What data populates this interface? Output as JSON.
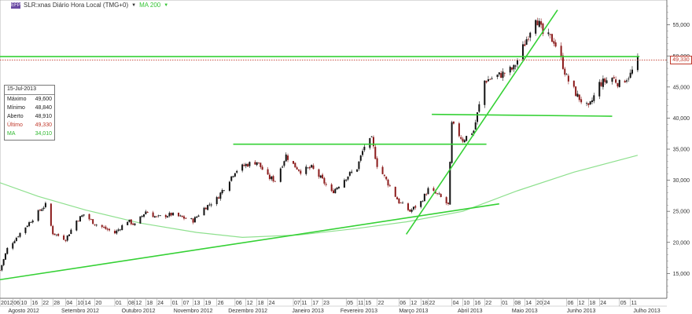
{
  "header": {
    "title": "SLR:xnas Diário Hora Local (TMG+0)",
    "ma_label": "MA 200"
  },
  "info_box": {
    "date": "15-Jul-2013",
    "rows": [
      {
        "label": "Máximo",
        "value": "49,600"
      },
      {
        "label": "Mínimo",
        "value": "48,840"
      },
      {
        "label": "Aberto",
        "value": "48,910"
      },
      {
        "label": "Último",
        "value": "49,330"
      },
      {
        "label": "MA",
        "value": "34,010"
      }
    ]
  },
  "last_price_label": "49,330",
  "colors": {
    "trendline": "#35d135",
    "ma": "#8ee08e",
    "candle_up": "#111111",
    "candle_down": "#8b1a1a",
    "last_price": "#c0392b"
  },
  "chart_data": {
    "type": "candlestick",
    "x_range": [
      "2012-07-30",
      "2013-07-31"
    ],
    "y_range": [
      11000,
      59000
    ],
    "y_ticks": [
      15000,
      20000,
      25000,
      30000,
      35000,
      40000,
      45000,
      50000,
      55000
    ],
    "y_tick_labels": [
      "15,000",
      "20,000",
      "25,000",
      "30,000",
      "35,000",
      "40,000",
      "45,000",
      "50,000",
      "55,000"
    ],
    "day_ticks": [
      {
        "d": "2012-07-30",
        "t": "2012"
      },
      {
        "d": "2012-08-06",
        "t": "06"
      },
      {
        "d": "2012-08-10",
        "t": "10"
      },
      {
        "d": "2012-08-16",
        "t": "16"
      },
      {
        "d": "2012-08-22",
        "t": "22"
      },
      {
        "d": "2012-08-28",
        "t": "28"
      },
      {
        "d": "2012-09-04",
        "t": "04"
      },
      {
        "d": "2012-09-10",
        "t": "10"
      },
      {
        "d": "2012-09-14",
        "t": "14"
      },
      {
        "d": "2012-09-20",
        "t": "20"
      },
      {
        "d": "2012-10-01",
        "t": "01"
      },
      {
        "d": "2012-10-08",
        "t": "08"
      },
      {
        "d": "2012-10-12",
        "t": "12"
      },
      {
        "d": "2012-10-18",
        "t": "18"
      },
      {
        "d": "2012-10-24",
        "t": "24"
      },
      {
        "d": "2012-11-01",
        "t": "01"
      },
      {
        "d": "2012-11-07",
        "t": "07"
      },
      {
        "d": "2012-11-13",
        "t": "13"
      },
      {
        "d": "2012-11-19",
        "t": "19"
      },
      {
        "d": "2012-11-26",
        "t": "26"
      },
      {
        "d": "2012-12-06",
        "t": "06"
      },
      {
        "d": "2012-12-12",
        "t": "12"
      },
      {
        "d": "2012-12-18",
        "t": "18"
      },
      {
        "d": "2012-12-24",
        "t": "24"
      },
      {
        "d": "2013-01-07",
        "t": "07"
      },
      {
        "d": "2013-01-11",
        "t": "11"
      },
      {
        "d": "2013-01-17",
        "t": "17"
      },
      {
        "d": "2013-01-23",
        "t": "23"
      },
      {
        "d": "2013-02-05",
        "t": "05"
      },
      {
        "d": "2013-02-11",
        "t": "11"
      },
      {
        "d": "2013-02-15",
        "t": "15"
      },
      {
        "d": "2013-02-22",
        "t": "22"
      },
      {
        "d": "2013-03-06",
        "t": "06"
      },
      {
        "d": "2013-03-12",
        "t": "12"
      },
      {
        "d": "2013-03-18",
        "t": "18"
      },
      {
        "d": "2013-03-22",
        "t": "22"
      },
      {
        "d": "2013-04-04",
        "t": "04"
      },
      {
        "d": "2013-04-10",
        "t": "10"
      },
      {
        "d": "2013-04-16",
        "t": "16"
      },
      {
        "d": "2013-04-22",
        "t": "22"
      },
      {
        "d": "2013-05-01",
        "t": "01"
      },
      {
        "d": "2013-05-08",
        "t": "08"
      },
      {
        "d": "2013-05-14",
        "t": "14"
      },
      {
        "d": "2013-05-20",
        "t": "20"
      },
      {
        "d": "2013-05-24",
        "t": "24"
      },
      {
        "d": "2013-06-06",
        "t": "06"
      },
      {
        "d": "2013-06-12",
        "t": "12"
      },
      {
        "d": "2013-06-18",
        "t": "18"
      },
      {
        "d": "2013-06-24",
        "t": "24"
      },
      {
        "d": "2013-07-05",
        "t": "05"
      },
      {
        "d": "2013-07-11",
        "t": "11"
      }
    ],
    "month_labels": [
      {
        "d": "2012-08-12",
        "t": "Agosto 2012"
      },
      {
        "d": "2012-09-12",
        "t": "Setembro 2012"
      },
      {
        "d": "2012-10-14",
        "t": "Outubro 2012"
      },
      {
        "d": "2012-11-13",
        "t": "Novembro 2012"
      },
      {
        "d": "2012-12-13",
        "t": "Dezembro 2012"
      },
      {
        "d": "2013-01-15",
        "t": "Janeiro 2013"
      },
      {
        "d": "2013-02-12",
        "t": "Fevereiro 2013"
      },
      {
        "d": "2013-03-14",
        "t": "Março 2013"
      },
      {
        "d": "2013-04-14",
        "t": "Abril 2013"
      },
      {
        "d": "2013-05-14",
        "t": "Maio 2013"
      },
      {
        "d": "2013-06-14",
        "t": "Junho 2013"
      },
      {
        "d": "2013-07-20",
        "t": "Julho 2013"
      }
    ],
    "series": [
      {
        "name": "MA 200",
        "points": [
          [
            "2012-07-30",
            29600
          ],
          [
            "2012-08-20",
            27400
          ],
          [
            "2012-09-15",
            25200
          ],
          [
            "2012-10-15",
            23100
          ],
          [
            "2012-11-15",
            21600
          ],
          [
            "2012-12-10",
            20800
          ],
          [
            "2013-01-10",
            21200
          ],
          [
            "2013-02-10",
            22200
          ],
          [
            "2013-03-10",
            23300
          ],
          [
            "2013-04-10",
            25000
          ],
          [
            "2013-05-10",
            28300
          ],
          [
            "2013-06-10",
            31300
          ],
          [
            "2013-07-15",
            34010
          ]
        ]
      }
    ],
    "price_path": [
      [
        "2012-07-30",
        15500
      ],
      [
        "2012-08-03",
        19000
      ],
      [
        "2012-08-10",
        21500
      ],
      [
        "2012-08-16",
        23500
      ],
      [
        "2012-08-22",
        25500
      ],
      [
        "2012-08-24",
        26000
      ],
      [
        "2012-08-28",
        21500
      ],
      [
        "2012-09-04",
        20500
      ],
      [
        "2012-09-10",
        23500
      ],
      [
        "2012-09-14",
        24500
      ],
      [
        "2012-09-20",
        23000
      ],
      [
        "2012-10-01",
        21500
      ],
      [
        "2012-10-08",
        23500
      ],
      [
        "2012-10-12",
        22800
      ],
      [
        "2012-10-18",
        25000
      ],
      [
        "2012-10-24",
        24000
      ],
      [
        "2012-11-01",
        24500
      ],
      [
        "2012-11-07",
        24000
      ],
      [
        "2012-11-13",
        23500
      ],
      [
        "2012-11-19",
        25500
      ],
      [
        "2012-11-26",
        27000
      ],
      [
        "2012-12-06",
        31500
      ],
      [
        "2012-12-12",
        32500
      ],
      [
        "2012-12-18",
        33000
      ],
      [
        "2012-12-24",
        30500
      ],
      [
        "2012-12-28",
        30000
      ],
      [
        "2013-01-03",
        34000
      ],
      [
        "2013-01-07",
        32500
      ],
      [
        "2013-01-11",
        31500
      ],
      [
        "2013-01-17",
        32000
      ],
      [
        "2013-01-23",
        30000
      ],
      [
        "2013-01-28",
        28000
      ],
      [
        "2013-02-05",
        30500
      ],
      [
        "2013-02-11",
        32000
      ],
      [
        "2013-02-15",
        35500
      ],
      [
        "2013-02-19",
        36500
      ],
      [
        "2013-02-22",
        32500
      ],
      [
        "2013-03-06",
        26500
      ],
      [
        "2013-03-12",
        25000
      ],
      [
        "2013-03-18",
        26500
      ],
      [
        "2013-03-22",
        28500
      ],
      [
        "2013-03-28",
        27500
      ],
      [
        "2013-04-02",
        26000
      ],
      [
        "2013-04-04",
        39000
      ],
      [
        "2013-04-10",
        36500
      ],
      [
        "2013-04-16",
        38000
      ],
      [
        "2013-04-22",
        46000
      ],
      [
        "2013-05-01",
        47000
      ],
      [
        "2013-05-08",
        48000
      ],
      [
        "2013-05-14",
        52000
      ],
      [
        "2013-05-20",
        56500
      ],
      [
        "2013-05-24",
        53500
      ],
      [
        "2013-05-30",
        52500
      ],
      [
        "2013-06-03",
        49500
      ],
      [
        "2013-06-06",
        46500
      ],
      [
        "2013-06-12",
        43500
      ],
      [
        "2013-06-18",
        41500
      ],
      [
        "2013-06-24",
        45500
      ],
      [
        "2013-07-01",
        46500
      ],
      [
        "2013-07-05",
        45500
      ],
      [
        "2013-07-11",
        47000
      ],
      [
        "2013-07-15",
        49330
      ]
    ],
    "trendlines": [
      {
        "from": [
          "2012-07-30",
          14000
        ],
        "to": [
          "2013-04-30",
          26200
        ]
      },
      {
        "from": [
          "2013-03-10",
          21300
        ],
        "to": [
          "2013-06-01",
          57400
        ]
      },
      {
        "from": [
          "2012-12-05",
          35800
        ],
        "to": [
          "2013-04-23",
          35800
        ]
      },
      {
        "from": [
          "2013-03-24",
          40600
        ],
        "to": [
          "2013-07-01",
          40300
        ]
      },
      {
        "from": [
          "2012-07-30",
          49900
        ],
        "to": [
          "2013-07-16",
          49900
        ]
      }
    ],
    "last_price": 49330
  }
}
